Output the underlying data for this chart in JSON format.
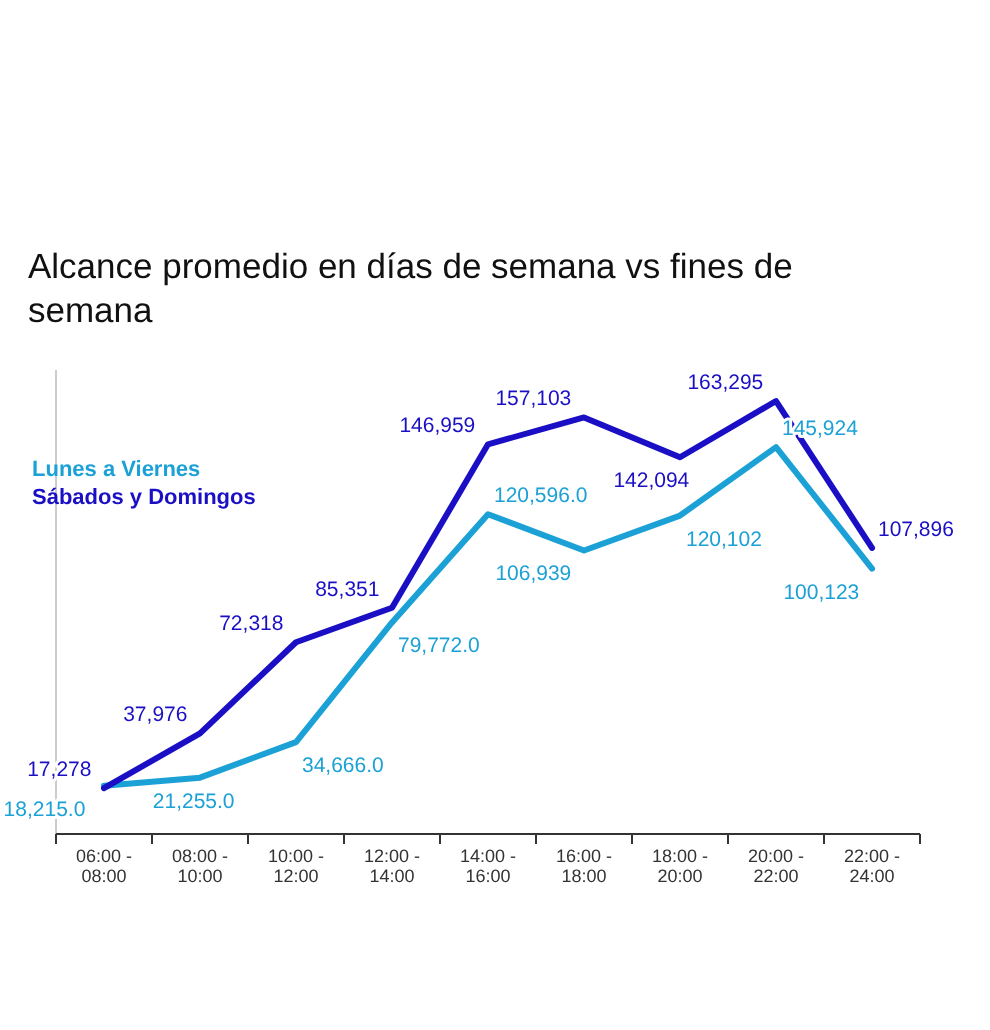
{
  "chart_data": {
    "type": "line",
    "title": "Alcance promedio en días de semana vs fines de semana",
    "categories": [
      "06:00 - 08:00",
      "08:00 - 10:00",
      "10:00 - 12:00",
      "12:00 - 14:00",
      "14:00 - 16:00",
      "16:00 - 18:00",
      "18:00 - 20:00",
      "20:00 - 22:00",
      "22:00 - 24:00"
    ],
    "series": [
      {
        "name": "Lunes a Viernes",
        "color": "#1ba1d6",
        "values": [
          18215.0,
          21255.0,
          34666.0,
          79772.0,
          120596.0,
          106939,
          120102,
          145924,
          100123
        ],
        "value_labels": [
          "18,215.0",
          "21,255.0",
          "34,666.0",
          "79,772.0",
          "120,596.0",
          "106,939",
          "120,102",
          "145,924",
          "100,123"
        ]
      },
      {
        "name": "Sábados y Domingos",
        "color": "#1a0fc4",
        "values": [
          17278,
          37976,
          72318,
          85351,
          146959,
          157103,
          142094,
          163295,
          107896
        ],
        "value_labels": [
          "17,278",
          "37,976",
          "72,318",
          "85,351",
          "146,959",
          "157,103",
          "142,094",
          "163,295",
          "107,896"
        ]
      }
    ],
    "ylim": [
      0,
      175000
    ],
    "legend": "top left",
    "marker": "none",
    "line_style": "solid",
    "tick_labels": "x"
  }
}
